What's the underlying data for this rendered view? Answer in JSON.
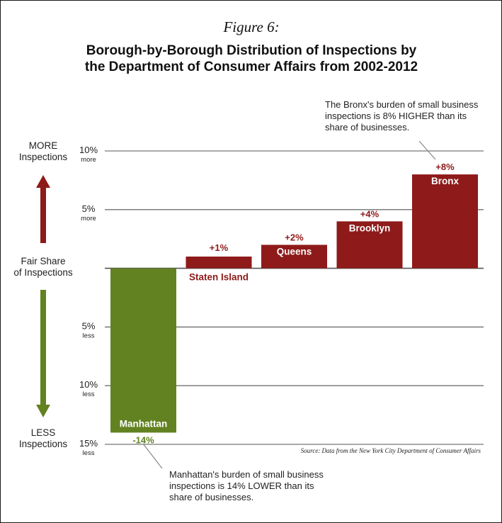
{
  "figure_label": "Figure 6:",
  "colors": {
    "positive": "#8e1a1a",
    "negative": "#628221",
    "grid": "#555555",
    "text": "#222222"
  },
  "side_labels": {
    "more": [
      "MORE",
      "Inspections"
    ],
    "fair": [
      "Fair Share",
      "of Inspections"
    ],
    "less": [
      "LESS",
      "Inspections"
    ]
  },
  "chart_data": {
    "type": "bar",
    "title": [
      "Borough-by-Borough Distribution of Inspections by",
      "the Department of Consumer Affairs from 2002-2012"
    ],
    "categories": [
      "Manhattan",
      "Staten Island",
      "Queens",
      "Brooklyn",
      "Bronx"
    ],
    "values": [
      -14,
      1,
      2,
      4,
      8
    ],
    "value_labels": [
      "-14%",
      "+1%",
      "+2%",
      "+4%",
      "+8%"
    ],
    "ylim": [
      -15,
      10
    ],
    "grid": true,
    "gridlines": [
      10,
      5,
      0,
      -5,
      -10,
      -15
    ],
    "ticks": [
      {
        "value": 10,
        "main": "10%",
        "sub": "more"
      },
      {
        "value": 5,
        "main": "5%",
        "sub": "more"
      },
      {
        "value": -5,
        "main": "5%",
        "sub": "less"
      },
      {
        "value": -10,
        "main": "10%",
        "sub": "less"
      },
      {
        "value": -15,
        "main": "15%",
        "sub": "less"
      }
    ],
    "xlabel": "",
    "ylabel": "",
    "annotations": [
      {
        "target": "Bronx",
        "lines": [
          "The Bronx's burden of small business",
          "inspections is 8% HIGHER than its",
          "share of businesses."
        ]
      },
      {
        "target": "Manhattan",
        "lines": [
          "Manhattan's burden of small business",
          "inspections is 14% LOWER than its",
          "share of businesses."
        ]
      }
    ],
    "source": "Source:  Data from the New York City Department of Consumer Affairs"
  }
}
